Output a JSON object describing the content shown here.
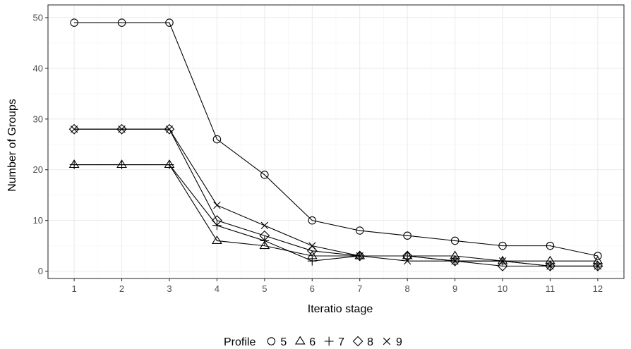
{
  "chart_data": {
    "type": "line",
    "x": [
      1,
      2,
      3,
      4,
      5,
      6,
      7,
      8,
      9,
      10,
      11,
      12
    ],
    "x_tick_labels": [
      "1",
      "2",
      "3",
      "4",
      "5",
      "6",
      "7",
      "8",
      "9",
      "10",
      "11",
      "12"
    ],
    "y_tick_labels": [
      "0",
      "10",
      "20",
      "30",
      "40",
      "50"
    ],
    "y_ticks": [
      0,
      10,
      20,
      30,
      40,
      50
    ],
    "xlabel": "Iteratio  stage",
    "ylabel": "Number of Groups",
    "xlim": [
      0.45,
      12.55
    ],
    "ylim": [
      -1.45,
      52.5
    ],
    "grid": true,
    "legend": {
      "title": "Profile",
      "position": "bottom",
      "entries": [
        "5",
        "6",
        "7",
        "8",
        "9"
      ]
    },
    "series": [
      {
        "name": "5",
        "marker": "circle",
        "values": [
          49,
          49,
          49,
          26,
          19,
          10,
          8,
          7,
          6,
          5,
          5,
          3
        ]
      },
      {
        "name": "6",
        "marker": "triangle",
        "values": [
          21,
          21,
          21,
          6,
          5,
          3,
          3,
          3,
          3,
          2,
          2,
          2
        ]
      },
      {
        "name": "7",
        "marker": "plus",
        "values": [
          21,
          21,
          21,
          9,
          6,
          2,
          3,
          3,
          2,
          2,
          1,
          1
        ]
      },
      {
        "name": "8",
        "marker": "diamond",
        "values": [
          28,
          28,
          28,
          10,
          7,
          4,
          3,
          3,
          2,
          1,
          1,
          1
        ]
      },
      {
        "name": "9",
        "marker": "cross",
        "values": [
          28,
          28,
          28,
          13,
          9,
          5,
          3,
          2,
          2,
          2,
          1,
          1
        ]
      }
    ]
  }
}
